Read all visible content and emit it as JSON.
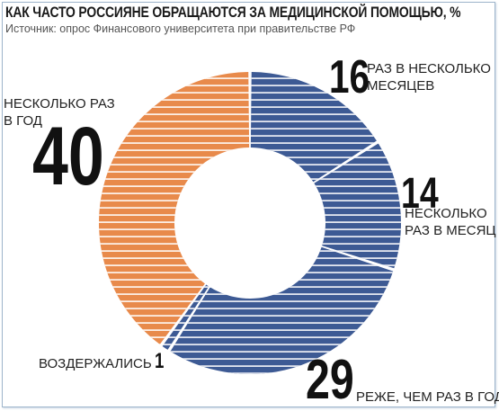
{
  "title": "КАК ЧАСТО РОССИЯНЕ ОБРАЩАЮТСЯ ЗА МЕДИЦИНСКОЙ ПОМОЩЬЮ, %",
  "subtitle": "Источник: опрос Финансового университета при правительстве РФ",
  "colors": {
    "blue": "#3d5a94",
    "orange": "#e88a4b",
    "stripe": "#ffffff"
  },
  "chart_data": {
    "type": "pie",
    "variant": "donut",
    "title": "КАК ЧАСТО РОССИЯНЕ ОБРАЩАЮТСЯ ЗА МЕДИЦИНСКОЙ ПОМОЩЬЮ, %",
    "slices": [
      {
        "value": 16,
        "value_label": "16",
        "label": "РАЗ В НЕСКОЛЬКО МЕСЯЦЕВ",
        "label_lines": [
          "РАЗ В НЕСКОЛЬКО",
          "МЕСЯЦЕВ"
        ],
        "color": "#3d5a94"
      },
      {
        "value": 14,
        "value_label": "14",
        "label": "НЕСКОЛЬКО РАЗ В МЕСЯЦ",
        "label_lines": [
          "НЕСКОЛЬКО",
          "РАЗ В МЕСЯЦ"
        ],
        "color": "#3d5a94"
      },
      {
        "value": 29,
        "value_label": "29",
        "label": "РЕЖЕ, ЧЕМ РАЗ В ГОД",
        "label_lines": [
          "РЕЖЕ, ЧЕМ РАЗ В ГОД"
        ],
        "color": "#3d5a94"
      },
      {
        "value": 1,
        "value_label": "1",
        "label": "ВОЗДЕРЖАЛИСЬ",
        "label_lines": [
          "ВОЗДЕРЖАЛИСЬ"
        ],
        "color": "#3d5a94"
      },
      {
        "value": 40,
        "value_label": "40",
        "label": "НЕСКОЛЬКО РАЗ В ГОД",
        "label_lines": [
          "НЕСКОЛЬКО РАЗ",
          "В ГОД"
        ],
        "color": "#e88a4b"
      }
    ]
  }
}
